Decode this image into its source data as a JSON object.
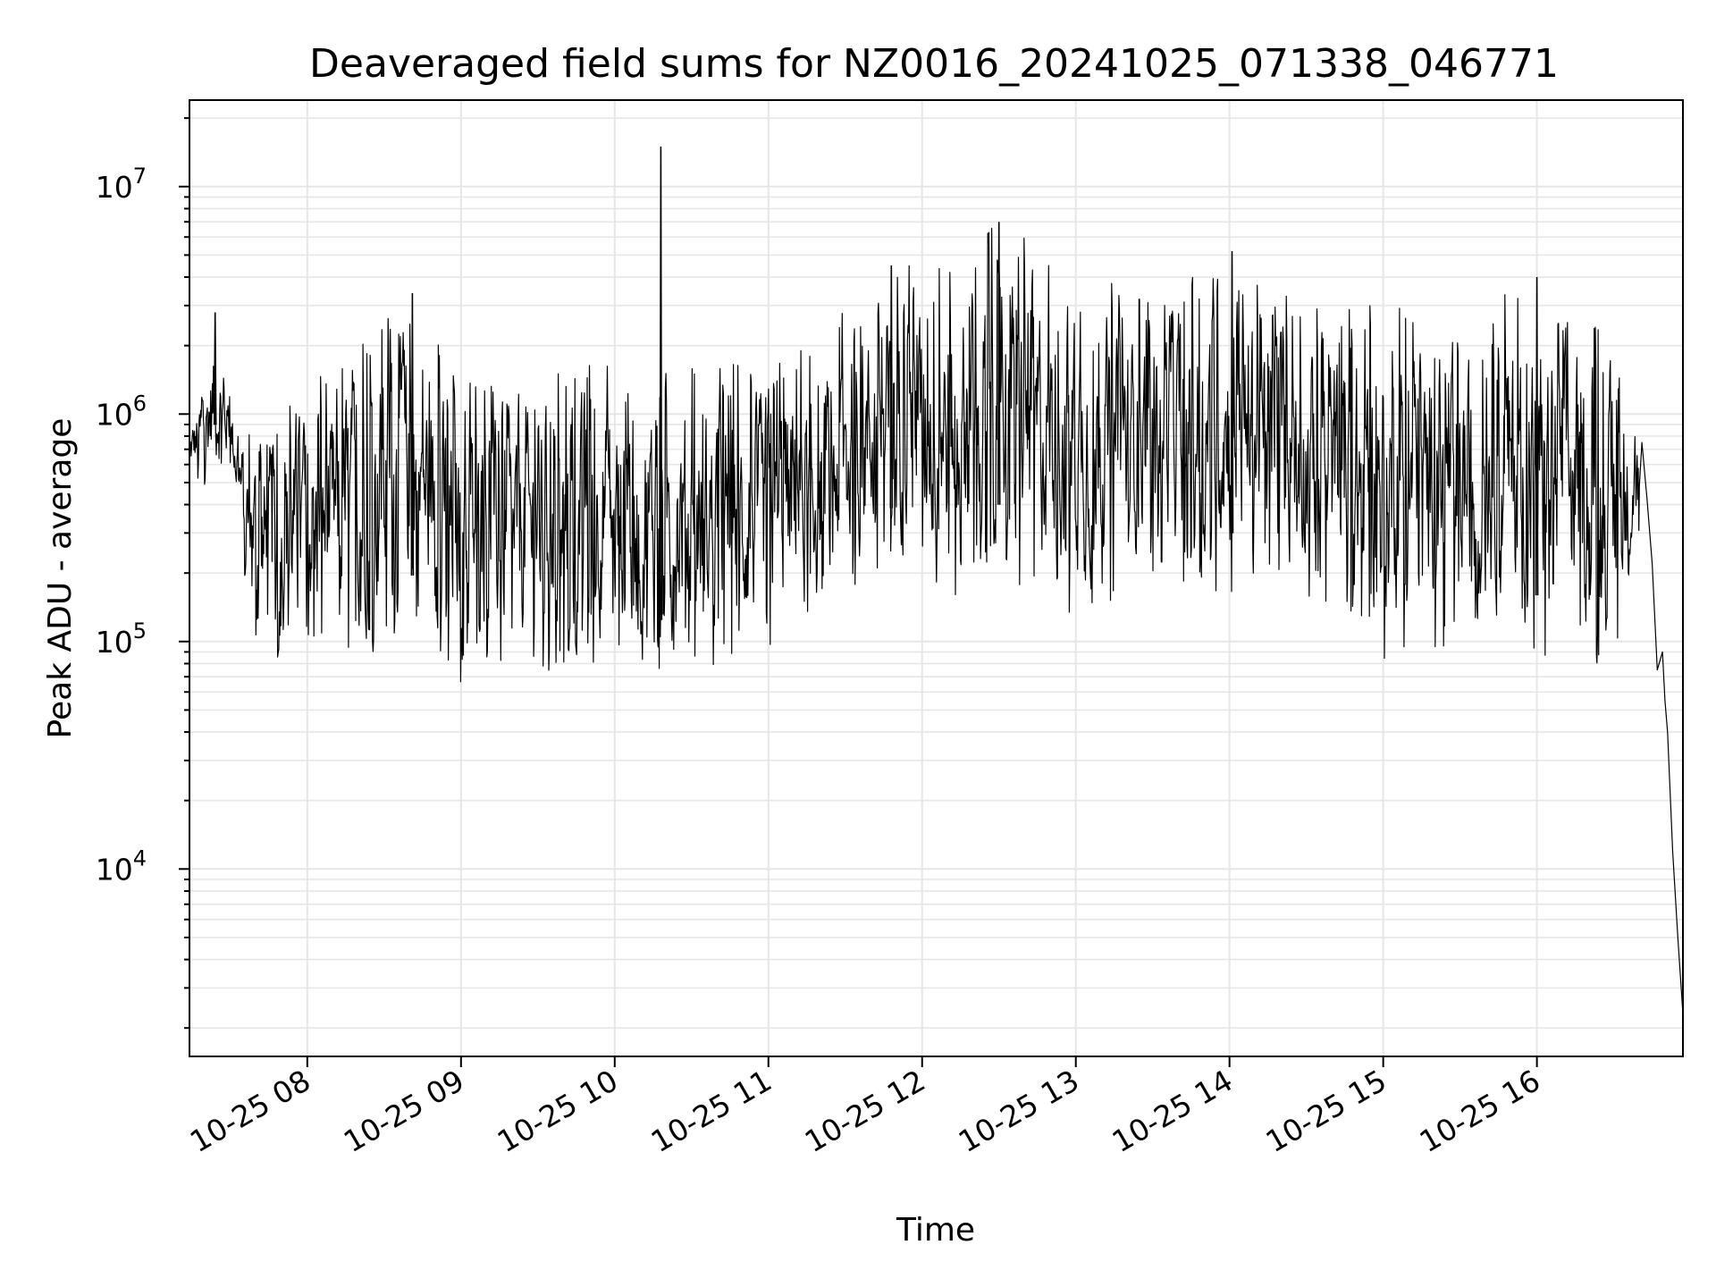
{
  "chart_data": {
    "type": "line",
    "title": "Deaveraged field sums for NZ0016_20241025_071338_046771",
    "xlabel": "Time",
    "ylabel": "Peak ADU - average",
    "yscale": "log",
    "xlim": [
      "2024-10-25T07:14",
      "2024-10-25T16:57"
    ],
    "ylim": [
      1500,
      24000000
    ],
    "grid": true,
    "x_ticks": [
      "10-25 08",
      "10-25 09",
      "10-25 10",
      "10-25 11",
      "10-25 12",
      "10-25 13",
      "10-25 14",
      "10-25 15",
      "10-25 16"
    ],
    "y_ticks": [
      {
        "base": "10",
        "exp": "4",
        "value": 10000
      },
      {
        "base": "10",
        "exp": "5",
        "value": 100000
      },
      {
        "base": "10",
        "exp": "6",
        "value": 1000000
      },
      {
        "base": "10",
        "exp": "7",
        "value": 10000000
      }
    ],
    "line_color": "#000000",
    "envelope": [
      {
        "time": "2024-10-25T07:14",
        "low": 500000,
        "high": 900000
      },
      {
        "time": "2024-10-25T07:24",
        "low": 450000,
        "high": 2800000
      },
      {
        "time": "2024-10-25T07:30",
        "low": 600000,
        "high": 1300000
      },
      {
        "time": "2024-10-25T07:36",
        "low": 150000,
        "high": 900000
      },
      {
        "time": "2024-10-25T07:42",
        "low": 65000,
        "high": 1000000
      },
      {
        "time": "2024-10-25T08:00",
        "low": 85000,
        "high": 1300000
      },
      {
        "time": "2024-10-25T08:25",
        "low": 85000,
        "high": 2300000
      },
      {
        "time": "2024-10-25T08:40",
        "low": 100000,
        "high": 3400000
      },
      {
        "time": "2024-10-25T09:00",
        "low": 63000,
        "high": 1400000
      },
      {
        "time": "2024-10-25T09:30",
        "low": 70000,
        "high": 1400000
      },
      {
        "time": "2024-10-25T09:55",
        "low": 80000,
        "high": 1800000
      },
      {
        "time": "2024-10-25T10:12",
        "low": 55000,
        "high": 2000000
      },
      {
        "time": "2024-10-25T10:30",
        "low": 80000,
        "high": 1600000
      },
      {
        "time": "2024-10-25T10:55",
        "low": 70000,
        "high": 1700000
      },
      {
        "time": "2024-10-25T11:20",
        "low": 100000,
        "high": 2200000
      },
      {
        "time": "2024-10-25T11:45",
        "low": 200000,
        "high": 4500000
      },
      {
        "time": "2024-10-25T12:10",
        "low": 150000,
        "high": 4500000
      },
      {
        "time": "2024-10-25T12:30",
        "low": 200000,
        "high": 7000000
      },
      {
        "time": "2024-10-25T13:00",
        "low": 110000,
        "high": 4300000
      },
      {
        "time": "2024-10-25T13:30",
        "low": 200000,
        "high": 3500000
      },
      {
        "time": "2024-10-25T14:00",
        "low": 150000,
        "high": 5200000
      },
      {
        "time": "2024-10-25T14:30",
        "low": 150000,
        "high": 3000000
      },
      {
        "time": "2024-10-25T15:00",
        "low": 80000,
        "high": 3000000
      },
      {
        "time": "2024-10-25T15:30",
        "low": 100000,
        "high": 2700000
      },
      {
        "time": "2024-10-25T16:00",
        "low": 80000,
        "high": 4000000
      },
      {
        "time": "2024-10-25T16:30",
        "low": 70000,
        "high": 2200000
      },
      {
        "time": "2024-10-25T16:40",
        "low": 250000,
        "high": 900000
      }
    ],
    "spikes": [
      {
        "time": "2024-10-25T10:18",
        "value": 15000000
      },
      {
        "time": "2024-10-25T12:30",
        "value": 7000000
      },
      {
        "time": "2024-10-25T14:01",
        "value": 5200000
      },
      {
        "time": "2024-10-25T11:48",
        "value": 4500000
      },
      {
        "time": "2024-10-25T16:00",
        "value": 4000000
      },
      {
        "time": "2024-10-25T08:41",
        "value": 3400000
      },
      {
        "time": "2024-10-25T07:24",
        "value": 2800000
      }
    ],
    "tail": [
      {
        "time": "2024-10-25T16:41",
        "value": 750000
      },
      {
        "time": "2024-10-25T16:43",
        "value": 420000
      },
      {
        "time": "2024-10-25T16:45",
        "value": 220000
      },
      {
        "time": "2024-10-25T16:47",
        "value": 75000
      },
      {
        "time": "2024-10-25T16:49",
        "value": 90000
      },
      {
        "time": "2024-10-25T16:50",
        "value": 55000
      },
      {
        "time": "2024-10-25T16:51",
        "value": 40000
      },
      {
        "time": "2024-10-25T16:53",
        "value": 12000
      },
      {
        "time": "2024-10-25T16:55",
        "value": 5000
      },
      {
        "time": "2024-10-25T16:57",
        "value": 2300
      }
    ]
  }
}
